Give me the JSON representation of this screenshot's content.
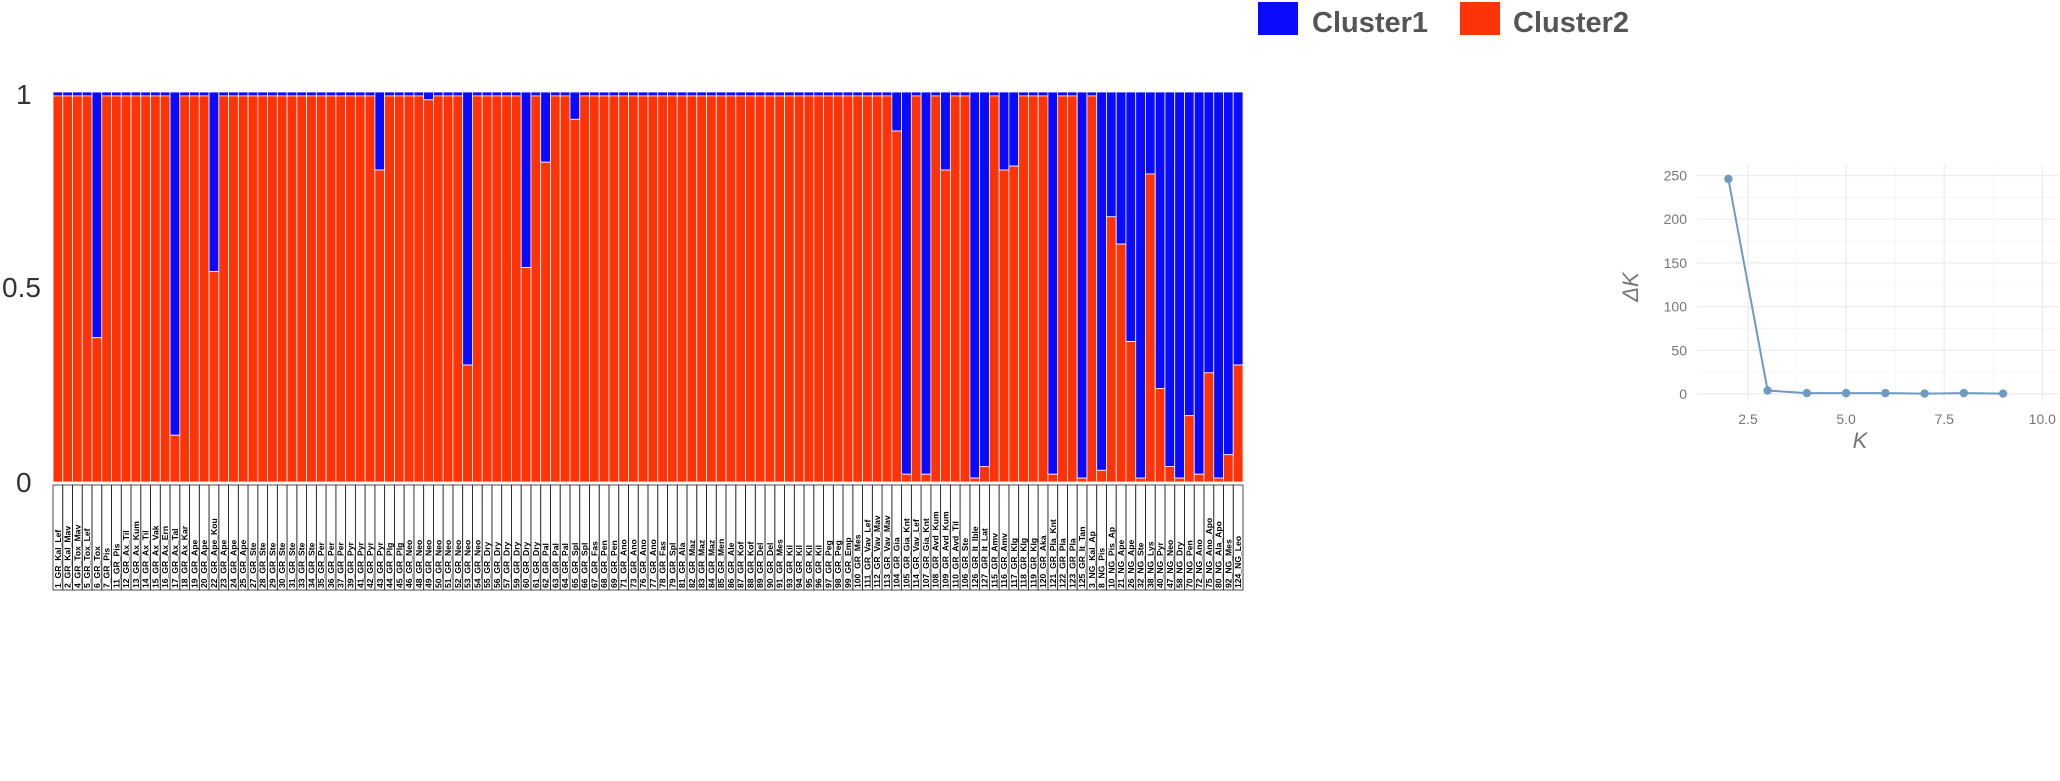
{
  "colors": {
    "cluster1": "#0a0aff",
    "cluster2": "#ff3308",
    "line": "#6f9bc2",
    "grid": "#ebebeb",
    "axis_text": "#777777"
  },
  "chart_data": [
    {
      "type": "bar",
      "stacked": true,
      "legend_position": "top-right",
      "y_ticks": [
        "1",
        "0.5",
        "0"
      ],
      "ylim": [
        0,
        1
      ],
      "series": [
        {
          "name": "Cluster1",
          "color": "#0a0aff"
        },
        {
          "name": "Cluster2",
          "color": "#ff3308"
        }
      ],
      "samples": [
        {
          "label": "1_GR_Kal_Lef",
          "cluster1": 0.01
        },
        {
          "label": "2_GR_Kal_Mav",
          "cluster1": 0.01
        },
        {
          "label": "4_GR_Tox_Mav",
          "cluster1": 0.01
        },
        {
          "label": "5_GR_Tox_Lef",
          "cluster1": 0.01
        },
        {
          "label": "6_GR_Tox",
          "cluster1": 0.63
        },
        {
          "label": "7_GR_Pis",
          "cluster1": 0.01
        },
        {
          "label": "11_GR_Pis",
          "cluster1": 0.01
        },
        {
          "label": "12_GR_Ax_Til",
          "cluster1": 0.01
        },
        {
          "label": "13_GR_Ax_Kum",
          "cluster1": 0.01
        },
        {
          "label": "14_GR_Ax_Til",
          "cluster1": 0.01
        },
        {
          "label": "15_GR_Ax_Vak",
          "cluster1": 0.01
        },
        {
          "label": "16_GR_Ax_Ern",
          "cluster1": 0.01
        },
        {
          "label": "17_GR_Ax_Tal",
          "cluster1": 0.88
        },
        {
          "label": "18_GR_Ax_Kar",
          "cluster1": 0.01
        },
        {
          "label": "19_GR_Ape",
          "cluster1": 0.01
        },
        {
          "label": "20_GR_Ape",
          "cluster1": 0.01
        },
        {
          "label": "22_GR_Ape_Kou",
          "cluster1": 0.46
        },
        {
          "label": "23_GR_Ape",
          "cluster1": 0.01
        },
        {
          "label": "24_GR_Ape",
          "cluster1": 0.01
        },
        {
          "label": "25_GR_Ape",
          "cluster1": 0.01
        },
        {
          "label": "27_GR_Ste",
          "cluster1": 0.01
        },
        {
          "label": "28_GR_Ste",
          "cluster1": 0.01
        },
        {
          "label": "29_GR_Ste",
          "cluster1": 0.01
        },
        {
          "label": "30_GR_Ste",
          "cluster1": 0.01
        },
        {
          "label": "31_GR_Ste",
          "cluster1": 0.01
        },
        {
          "label": "33_GR_Ste",
          "cluster1": 0.01
        },
        {
          "label": "34_GR_Ste",
          "cluster1": 0.01
        },
        {
          "label": "35_GR_Per",
          "cluster1": 0.01
        },
        {
          "label": "36_GR_Per",
          "cluster1": 0.01
        },
        {
          "label": "37_GR_Per",
          "cluster1": 0.01
        },
        {
          "label": "39_GR_Pyr",
          "cluster1": 0.01
        },
        {
          "label": "41_GR_Pyr",
          "cluster1": 0.01
        },
        {
          "label": "42_GR_Pyr",
          "cluster1": 0.01
        },
        {
          "label": "43_GR_Pyr",
          "cluster1": 0.2
        },
        {
          "label": "44_GR_Plg",
          "cluster1": 0.01
        },
        {
          "label": "45_GR_Plg",
          "cluster1": 0.01
        },
        {
          "label": "46_GR_Neo",
          "cluster1": 0.01
        },
        {
          "label": "48_GR_Neo",
          "cluster1": 0.01
        },
        {
          "label": "49_GR_Neo",
          "cluster1": 0.02
        },
        {
          "label": "50_GR_Neo",
          "cluster1": 0.01
        },
        {
          "label": "51_GR_Neo",
          "cluster1": 0.01
        },
        {
          "label": "52_GR_Neo",
          "cluster1": 0.01
        },
        {
          "label": "53_GR_Neo",
          "cluster1": 0.7
        },
        {
          "label": "54_GR_Neo",
          "cluster1": 0.01
        },
        {
          "label": "55_GR_Dry",
          "cluster1": 0.01
        },
        {
          "label": "56_GR_Dry",
          "cluster1": 0.01
        },
        {
          "label": "57_GR_Dry",
          "cluster1": 0.01
        },
        {
          "label": "59_GR_Dry",
          "cluster1": 0.01
        },
        {
          "label": "60_GR_Dry",
          "cluster1": 0.45
        },
        {
          "label": "61_GR_Dry",
          "cluster1": 0.01
        },
        {
          "label": "62_GR_Pal",
          "cluster1": 0.18
        },
        {
          "label": "63_GR_Pal",
          "cluster1": 0.01
        },
        {
          "label": "64_GR_Pal",
          "cluster1": 0.01
        },
        {
          "label": "65_GR_Spl",
          "cluster1": 0.07
        },
        {
          "label": "66_GR_Spl",
          "cluster1": 0.01
        },
        {
          "label": "67_GR_Fas",
          "cluster1": 0.01
        },
        {
          "label": "68_GR_Pen",
          "cluster1": 0.01
        },
        {
          "label": "69_GR_Pen",
          "cluster1": 0.01
        },
        {
          "label": "71_GR_Ano",
          "cluster1": 0.01
        },
        {
          "label": "73_GR_Ano",
          "cluster1": 0.01
        },
        {
          "label": "76_GR_Ano",
          "cluster1": 0.01
        },
        {
          "label": "77_GR_Ano",
          "cluster1": 0.01
        },
        {
          "label": "78_GR_Fas",
          "cluster1": 0.01
        },
        {
          "label": "79_GR_Spl",
          "cluster1": 0.01
        },
        {
          "label": "81_GR_Ala",
          "cluster1": 0.01
        },
        {
          "label": "82_GR_Maz",
          "cluster1": 0.01
        },
        {
          "label": "83_GR_Maz",
          "cluster1": 0.01
        },
        {
          "label": "84_GR_Maz",
          "cluster1": 0.01
        },
        {
          "label": "85_GR_Men",
          "cluster1": 0.01
        },
        {
          "label": "86_GR_Ale",
          "cluster1": 0.01
        },
        {
          "label": "87_GR_Kof",
          "cluster1": 0.01
        },
        {
          "label": "88_GR_Kof",
          "cluster1": 0.01
        },
        {
          "label": "89_GR_Del",
          "cluster1": 0.01
        },
        {
          "label": "90_GR_Del",
          "cluster1": 0.01
        },
        {
          "label": "91_GR_Mes",
          "cluster1": 0.01
        },
        {
          "label": "93_GR_Kil",
          "cluster1": 0.01
        },
        {
          "label": "94_GR_Kil",
          "cluster1": 0.01
        },
        {
          "label": "95_GR_Kil",
          "cluster1": 0.01
        },
        {
          "label": "96_GR_Kil",
          "cluster1": 0.01
        },
        {
          "label": "97_GR_Peg",
          "cluster1": 0.01
        },
        {
          "label": "98_GR_Peg",
          "cluster1": 0.01
        },
        {
          "label": "99_GR_Emp",
          "cluster1": 0.01
        },
        {
          "label": "100_GR_Mes",
          "cluster1": 0.01
        },
        {
          "label": "111_GR_Vav_Lef",
          "cluster1": 0.01
        },
        {
          "label": "112_GR_Vav_Mav",
          "cluster1": 0.01
        },
        {
          "label": "113_GR_Vav_Mav",
          "cluster1": 0.01
        },
        {
          "label": "104_GR_Gia",
          "cluster1": 0.1
        },
        {
          "label": "105_GR_Gia_Knt",
          "cluster1": 0.98
        },
        {
          "label": "114_GR_Vav_Lef",
          "cluster1": 0.01
        },
        {
          "label": "107_GR_Gia_Knt",
          "cluster1": 0.98
        },
        {
          "label": "108_GR_Avd_Kum",
          "cluster1": 0.01
        },
        {
          "label": "109_GR_Avd_Kum",
          "cluster1": 0.2
        },
        {
          "label": "110_GR_Avd_Til",
          "cluster1": 0.01
        },
        {
          "label": "106_GR_Ste",
          "cluster1": 0.01
        },
        {
          "label": "126_GR_It_Ible",
          "cluster1": 0.99
        },
        {
          "label": "127_GR_It_Lat",
          "cluster1": 0.96
        },
        {
          "label": "115_GR_Amv",
          "cluster1": 0.01
        },
        {
          "label": "116_GR_Amv",
          "cluster1": 0.2
        },
        {
          "label": "117_GR_Klg",
          "cluster1": 0.19
        },
        {
          "label": "118_GR_Klg",
          "cluster1": 0.01
        },
        {
          "label": "119_GR_Klg",
          "cluster1": 0.01
        },
        {
          "label": "120_GR_Aka",
          "cluster1": 0.01
        },
        {
          "label": "121_GR_Pla_Knt",
          "cluster1": 0.98
        },
        {
          "label": "122_GR_Pla",
          "cluster1": 0.01
        },
        {
          "label": "123_GR_Pla",
          "cluster1": 0.01
        },
        {
          "label": "125_GR_It_Tan",
          "cluster1": 0.99
        },
        {
          "label": "3_NG_Kal_Ap",
          "cluster1": 0.01
        },
        {
          "label": "8_NG_Pis",
          "cluster1": 0.97
        },
        {
          "label": "10_NG_Pis_Ap",
          "cluster1": 0.32
        },
        {
          "label": "21_NG_Ape",
          "cluster1": 0.39
        },
        {
          "label": "26_NG_Ape",
          "cluster1": 0.64
        },
        {
          "label": "32_NG_Ste",
          "cluster1": 0.99
        },
        {
          "label": "38_NG_Lys",
          "cluster1": 0.21
        },
        {
          "label": "40_NG_Pyr",
          "cluster1": 0.76
        },
        {
          "label": "47_NG_Neo",
          "cluster1": 0.96
        },
        {
          "label": "58_NG_Dry",
          "cluster1": 0.99
        },
        {
          "label": "70_NG_Pen",
          "cluster1": 0.83
        },
        {
          "label": "72_NG_Ano",
          "cluster1": 0.98
        },
        {
          "label": "75_NG_Ano_Apo",
          "cluster1": 0.72
        },
        {
          "label": "80_NG_Ala_Apo",
          "cluster1": 0.99
        },
        {
          "label": "92_NG_Mes",
          "cluster1": 0.93
        },
        {
          "label": "124_NG_Leo",
          "cluster1": 0.7
        }
      ]
    },
    {
      "type": "line",
      "xlabel": "K",
      "ylabel": "ΔK",
      "xlim": [
        1.2,
        10.4
      ],
      "ylim": [
        -8,
        262
      ],
      "x_ticks": [
        2.5,
        5.0,
        7.5,
        10.0
      ],
      "x_tick_labels": [
        "2.5",
        "5.0",
        "7.5",
        "10.0"
      ],
      "y_ticks": [
        0,
        50,
        100,
        150,
        200,
        250
      ],
      "y_tick_labels": [
        "0",
        "50",
        "100",
        "150",
        "200",
        "250"
      ],
      "x": [
        2,
        3,
        4,
        5,
        6,
        7,
        8,
        9
      ],
      "y": [
        246,
        4,
        1,
        1,
        1,
        0.5,
        1,
        0.5
      ]
    }
  ]
}
